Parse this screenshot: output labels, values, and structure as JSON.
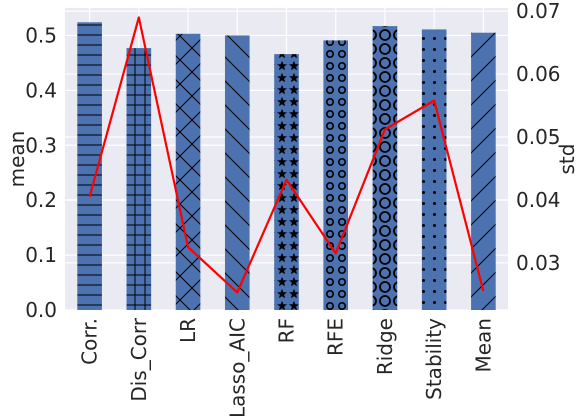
{
  "chart_data": {
    "type": "bar",
    "title": "",
    "categories": [
      "Corr.",
      "Dis_Corr",
      "LR",
      "Lasso_AIC",
      "RF",
      "RFE",
      "Ridge",
      "Stability",
      "Mean"
    ],
    "bar_hatches": [
      "-",
      "+",
      "x",
      "\\",
      "*",
      "o",
      "O",
      ".",
      "/"
    ],
    "series": [
      {
        "axis": "left",
        "type": "bar",
        "color": "#4c72b0",
        "values": [
          0.524,
          0.477,
          0.503,
          0.5,
          0.466,
          0.491,
          0.517,
          0.511,
          0.505
        ]
      },
      {
        "axis": "right",
        "type": "line",
        "color": "#ff0000",
        "values": [
          0.0405,
          0.069,
          0.0325,
          0.0253,
          0.0432,
          0.0315,
          0.0512,
          0.0558,
          0.0255
        ]
      }
    ],
    "ylabel": "mean",
    "y2label": "std",
    "ylim": [
      0,
      0.55
    ],
    "y2lim": [
      0.0225,
      0.0705
    ],
    "yticks": [
      "0.0",
      "0.1",
      "0.2",
      "0.3",
      "0.4",
      "0.5"
    ],
    "y2ticks": [
      "0.03",
      "0.04",
      "0.05",
      "0.06",
      "0.07"
    ],
    "grid": true,
    "style": {
      "background": "#eaeaf2",
      "grid_color": "#ffffff",
      "bar_color": "#4c72b0",
      "line_color": "#ff0000",
      "hatch_color": "#000000"
    }
  }
}
